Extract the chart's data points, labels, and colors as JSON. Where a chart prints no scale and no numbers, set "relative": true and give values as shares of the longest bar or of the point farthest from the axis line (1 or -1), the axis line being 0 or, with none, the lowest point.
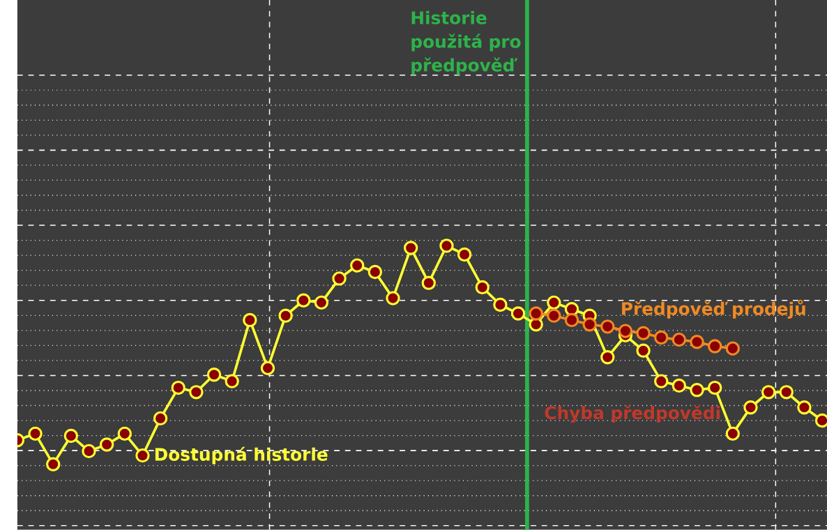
{
  "chart_data": {
    "type": "line",
    "relative": true,
    "grid": true,
    "marker": "circle",
    "line_style": "solid",
    "categories": [
      null,
      null,
      null,
      null,
      null,
      null,
      null,
      null,
      null,
      null,
      null,
      null,
      null,
      null,
      null,
      null,
      null,
      null,
      null,
      null,
      null,
      null,
      null,
      null,
      null,
      null,
      null,
      null,
      null,
      null,
      null,
      null,
      null,
      null,
      null,
      null,
      null,
      null,
      null,
      null,
      null,
      null,
      null,
      null,
      null,
      null
    ],
    "series": [
      {
        "color": "#ffff33",
        "values": [
          0.11,
          0.14,
          0,
          0.13,
          0.06,
          0.09,
          0.14,
          0.04,
          0.21,
          0.35,
          0.33,
          0.41,
          0.38,
          0.66,
          0.44,
          0.68,
          0.75,
          0.74,
          0.85,
          0.91,
          0.88,
          0.76,
          0.99,
          0.83,
          1,
          0.96,
          0.81,
          0.73,
          0.69,
          0.64,
          0.74,
          0.71,
          0.68,
          0.49,
          0.59,
          0.52,
          0.38,
          0.36,
          0.34,
          0.35,
          0.14,
          0.26,
          0.33,
          0.33,
          0.26,
          0.2
        ]
      },
      {
        "color": "#f08a24",
        "values": [
          null,
          null,
          null,
          null,
          null,
          null,
          null,
          null,
          null,
          null,
          null,
          null,
          null,
          null,
          null,
          null,
          null,
          null,
          null,
          null,
          null,
          null,
          null,
          null,
          null,
          null,
          null,
          null,
          null,
          0.69,
          0.68,
          0.66,
          0.64,
          0.63,
          0.61,
          0.6,
          0.58,
          0.57,
          0.56,
          0.54,
          0.53,
          null,
          null,
          null,
          null,
          null
        ]
      }
    ],
    "annotations": [
      "Dostupná historie",
      "Předpověď prodejů",
      "Chyba předpovědi",
      "Historie použitá pro předpověď"
    ]
  }
}
